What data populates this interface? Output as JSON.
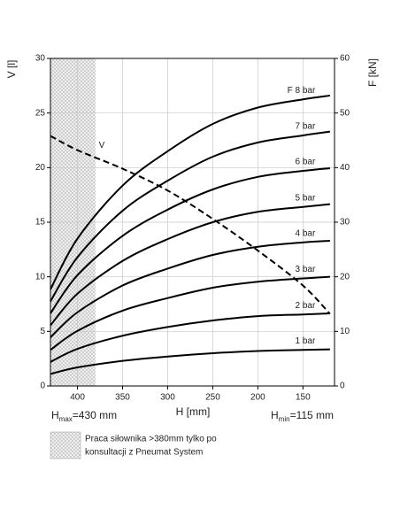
{
  "chart_data": {
    "type": "line",
    "y_label": "V [l]",
    "y2_label": "F [kN]",
    "x_label": "H [mm]",
    "hmax": {
      "base": "H",
      "sub": "max",
      "rest": "=430 mm"
    },
    "hmin": {
      "base": "H",
      "sub": "min",
      "rest": "=115 mm"
    },
    "note": [
      "Praca siłownika >380mm tylko po",
      "konsultacji z Pneumat System"
    ],
    "hatch_range": [
      430,
      380
    ],
    "xlim": [
      430,
      115
    ],
    "xticks": [
      400,
      350,
      300,
      250,
      200,
      150
    ],
    "ylim": [
      0,
      30
    ],
    "yticks": [
      0,
      5,
      10,
      15,
      20,
      25,
      30
    ],
    "y2lim": [
      0,
      60
    ],
    "y2ticks": [
      0,
      10,
      20,
      30,
      40,
      50,
      60
    ],
    "grid": true,
    "x": [
      430,
      400,
      350,
      300,
      250,
      200,
      150,
      120
    ],
    "series": [
      {
        "name": "V",
        "color": "#000000",
        "dashed": true,
        "values": [
          22.9,
          21.6,
          19.9,
          17.9,
          15.3,
          12.4,
          9.2,
          6.6
        ]
      },
      {
        "name": "F 8 bar",
        "color": "#000000",
        "axis": "y2",
        "values": [
          17.7,
          27,
          36.7,
          43,
          48,
          51,
          52.5,
          53.2
        ]
      },
      {
        "name": "7 bar",
        "color": "#000000",
        "axis": "y2",
        "values": [
          15.5,
          23.6,
          32.1,
          37.6,
          42,
          44.6,
          45.9,
          46.6
        ]
      },
      {
        "name": "6 bar",
        "color": "#000000",
        "axis": "y2",
        "values": [
          13.3,
          20.3,
          27.5,
          32.3,
          36,
          38.3,
          39.4,
          39.9
        ]
      },
      {
        "name": "5 bar",
        "color": "#000000",
        "axis": "y2",
        "values": [
          11.1,
          16.9,
          22.9,
          26.9,
          30,
          31.9,
          32.8,
          33.3
        ]
      },
      {
        "name": "4 bar",
        "color": "#000000",
        "axis": "y2",
        "values": [
          8.9,
          13.5,
          18.4,
          21.5,
          24,
          25.5,
          26.3,
          26.6
        ]
      },
      {
        "name": "3 bar",
        "color": "#000000",
        "axis": "y2",
        "values": [
          6.6,
          10.1,
          13.8,
          16.1,
          18,
          19.1,
          19.7,
          20
        ]
      },
      {
        "name": "2 bar",
        "color": "#000000",
        "axis": "y2",
        "values": [
          4.4,
          6.8,
          9.2,
          10.8,
          12,
          12.8,
          13.1,
          13.3
        ]
      },
      {
        "name": "1 bar",
        "color": "#000000",
        "axis": "y2",
        "values": [
          2.2,
          3.4,
          4.6,
          5.4,
          6,
          6.4,
          6.6,
          6.7
        ]
      }
    ]
  }
}
